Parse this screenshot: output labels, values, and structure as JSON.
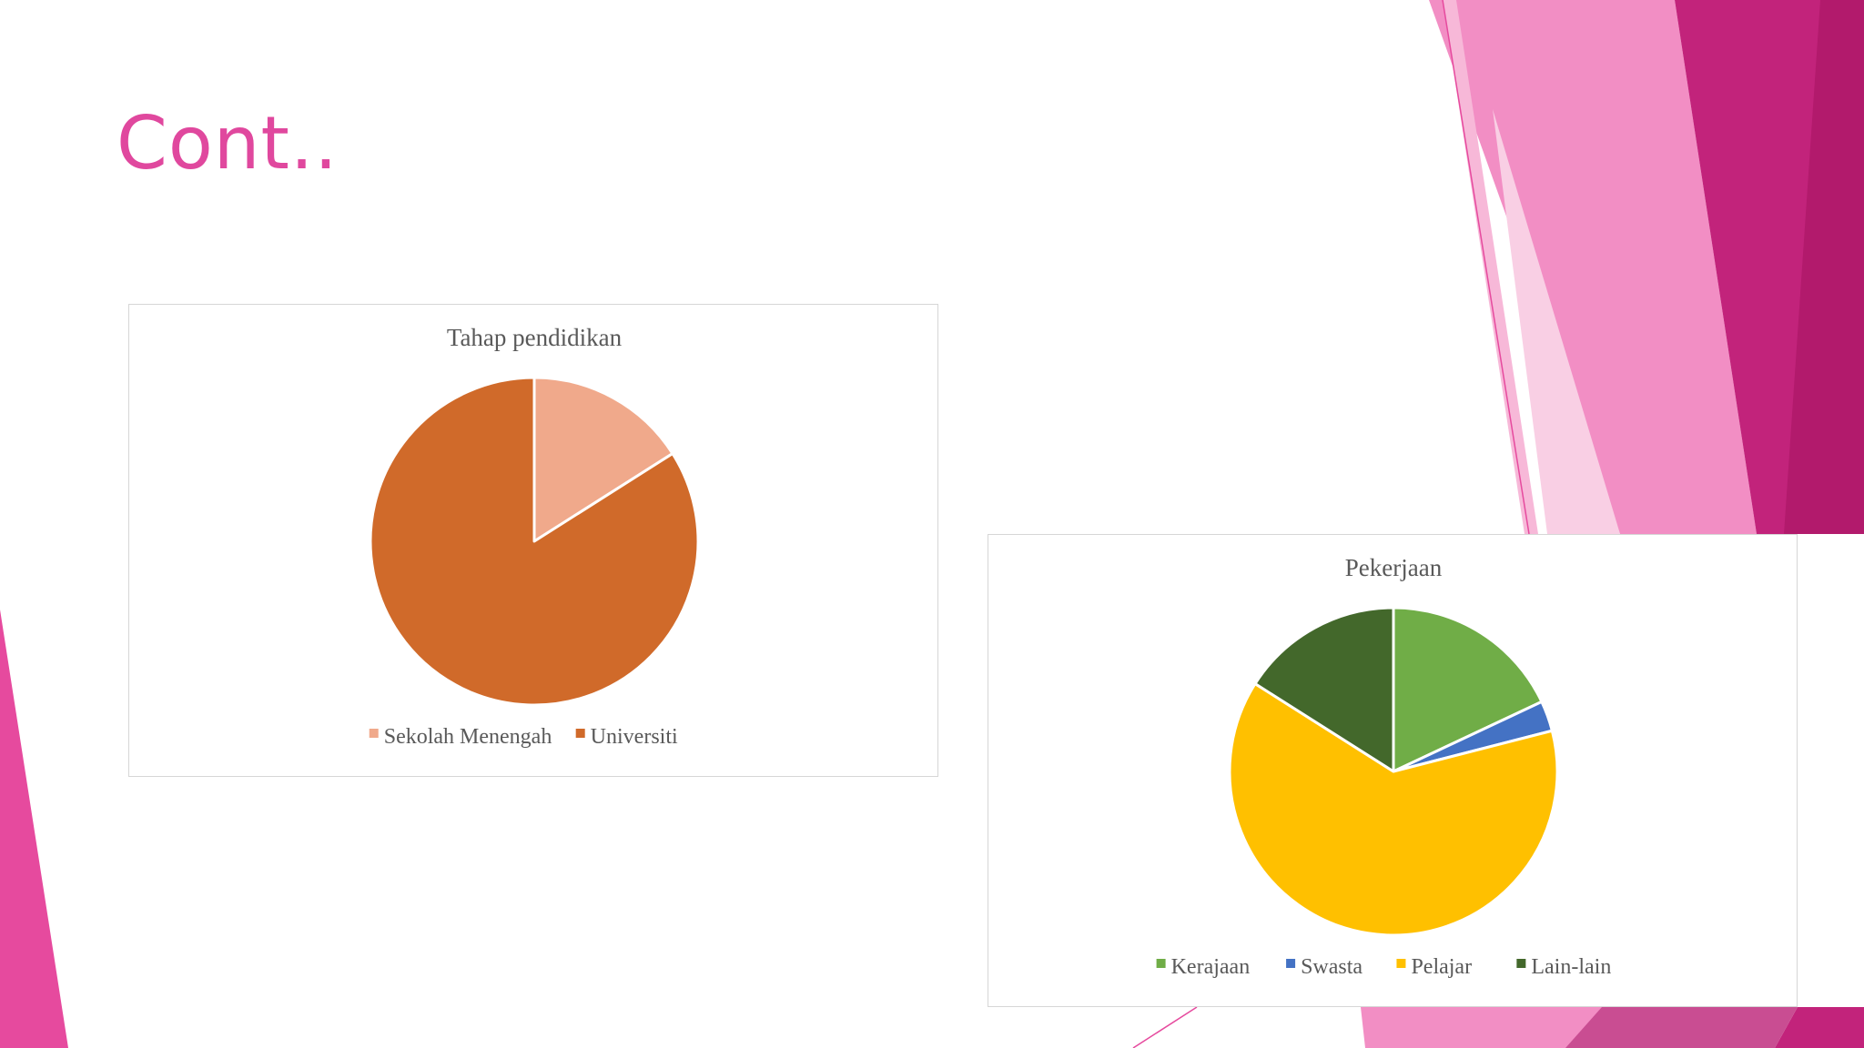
{
  "slide": {
    "title": "Cont..",
    "title_color": "#E0489E",
    "background_color": "#FFFFFF",
    "accent_colors": [
      "#BE1E73",
      "#E64A9E",
      "#F28EC4",
      "#F9CFE4"
    ]
  },
  "chart_data": [
    {
      "type": "pie",
      "title": "Tahap pendidikan",
      "categories": [
        "Sekolah Menengah",
        "Universiti"
      ],
      "values": [
        16,
        84
      ],
      "colors": [
        "#F0A98B",
        "#D06A2A"
      ],
      "legend": "bottom"
    },
    {
      "type": "pie",
      "title": "Pekerjaan",
      "categories": [
        "Kerajaan",
        "Swasta",
        "Pelajar",
        "Lain-lain"
      ],
      "values": [
        18,
        3,
        63,
        16
      ],
      "colors": [
        "#70AD47",
        "#4472C4",
        "#FFC000",
        "#43682B"
      ],
      "legend": "bottom"
    }
  ]
}
